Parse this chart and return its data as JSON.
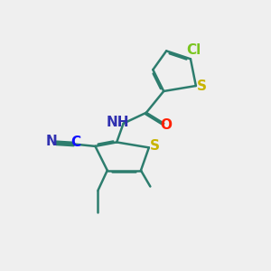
{
  "bg_color": "#efefef",
  "bond_color": "#2d7d6e",
  "bond_width": 1.8,
  "dbo": 0.055,
  "atom_colors": {
    "S": "#c8b400",
    "Cl": "#7ac520",
    "N": "#3030b0",
    "O": "#ff2000",
    "C_blue": "#1010ff",
    "default": "#2d7d6e"
  },
  "fs": 11
}
